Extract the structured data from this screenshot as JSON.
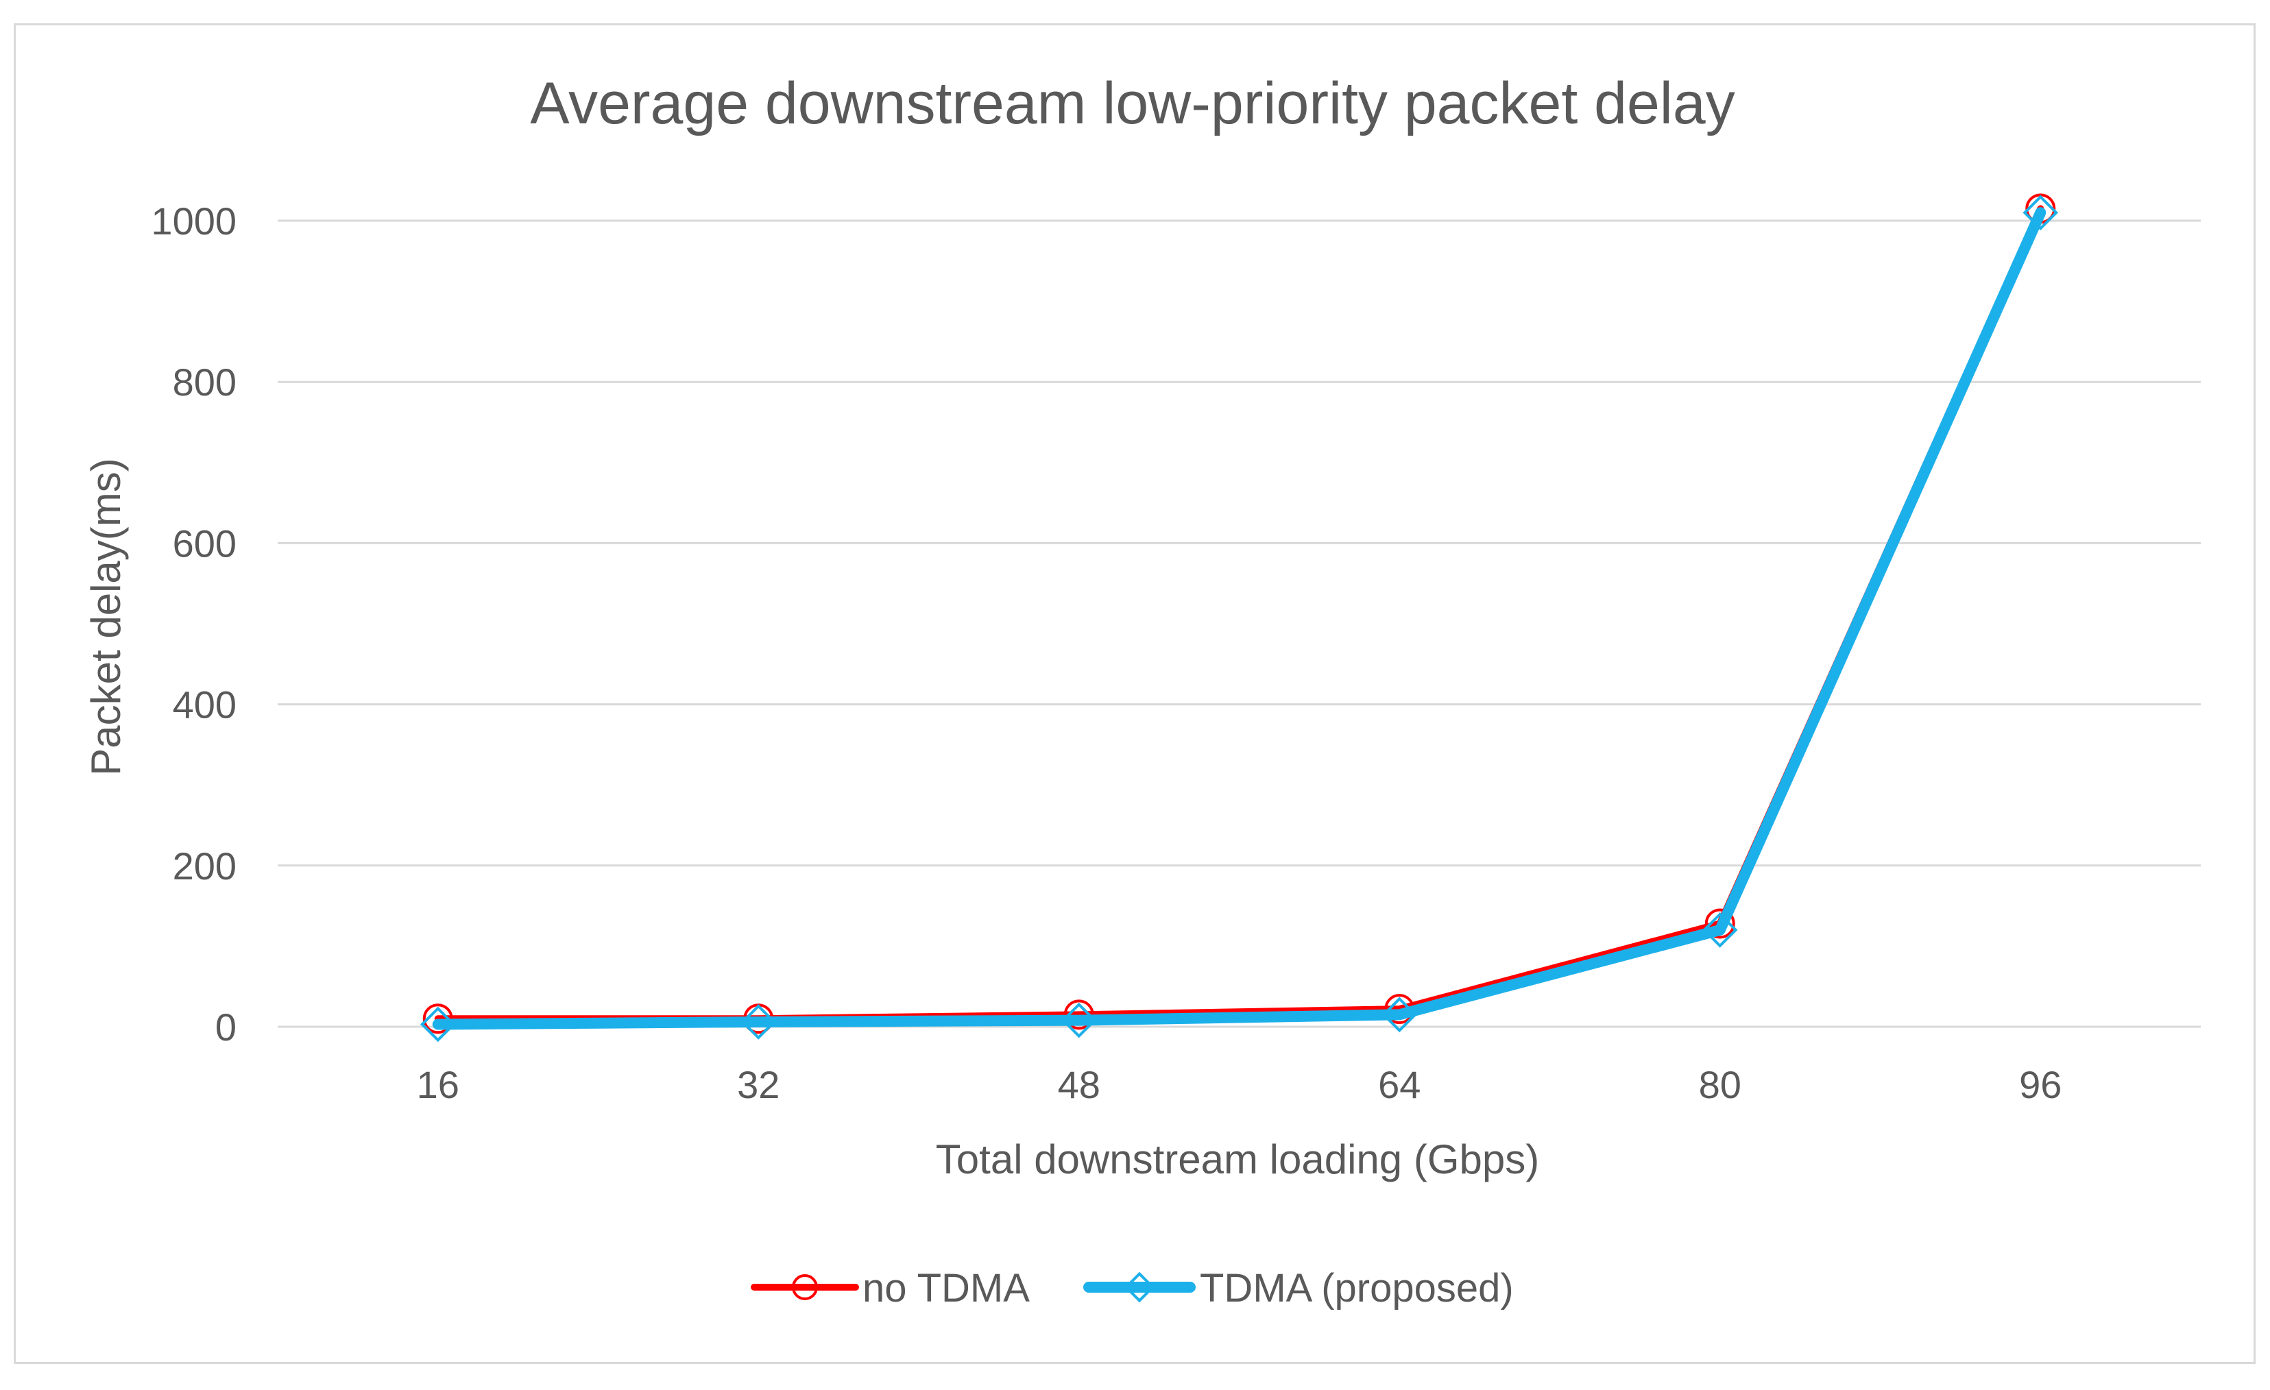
{
  "chart_data": {
    "type": "line",
    "title": "Average downstream low-priority packet delay",
    "xlabel": "Total downstream loading (Gbps)",
    "ylabel": "Packet delay(ms)",
    "categories": [
      "16",
      "32",
      "48",
      "64",
      "80",
      "96"
    ],
    "ylim": [
      0,
      1000
    ],
    "yticks": [
      0,
      200,
      400,
      600,
      800,
      1000
    ],
    "grid": true,
    "legend_position": "bottom",
    "series": [
      {
        "name": "no TDMA",
        "color": "#ff0000",
        "marker": "circle",
        "values": [
          10,
          10,
          15,
          22,
          128,
          1015
        ]
      },
      {
        "name": "TDMA (proposed)",
        "color": "#1cb0ea",
        "marker": "diamond",
        "values": [
          3,
          6,
          8,
          15,
          120,
          1010
        ]
      }
    ]
  }
}
